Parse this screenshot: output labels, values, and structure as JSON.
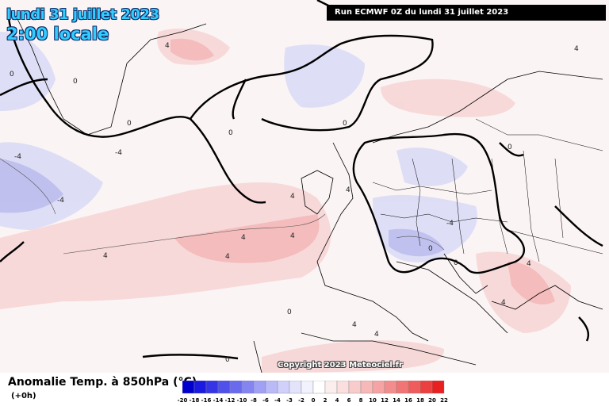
{
  "header": {
    "date": "lundi 31 juillet 2023",
    "local_time": "2:00 locale",
    "run_info": "Run ECMWF 0Z du lundi 31 juillet 2023"
  },
  "footer": {
    "copyright": "Copyright 2023 Meteociel.fr",
    "legend_title": "Anomalie Temp. à 850hPa (°C)",
    "legend_subtitle": "(+0h)"
  },
  "scale": {
    "labels": [
      "-20",
      "-18",
      "-16",
      "-14",
      "-12",
      "-10",
      "-8",
      "-6",
      "-4",
      "-3",
      "-2",
      "0",
      "2",
      "4",
      "6",
      "8",
      "10",
      "12",
      "14",
      "16",
      "18",
      "20",
      "22"
    ],
    "colors": [
      "#0000cc",
      "#1a1ae0",
      "#3535e6",
      "#5050ea",
      "#6a6aee",
      "#8585f2",
      "#a0a0f5",
      "#babaf8",
      "#d0d0fa",
      "#e3e3fc",
      "#f2f2fe",
      "#ffffff",
      "#fdeeee",
      "#fbdede",
      "#f9cccc",
      "#f7b8b8",
      "#f5a3a3",
      "#f38d8d",
      "#f17575",
      "#ef5c5c",
      "#ec3f3f",
      "#e82020"
    ]
  },
  "contour_labels": [
    "-4",
    "-4",
    "-4",
    "0",
    "0",
    "0",
    "0",
    "0",
    "0",
    "0",
    "0",
    "0",
    "4",
    "4",
    "4",
    "4",
    "4",
    "4",
    "4",
    "4",
    "4",
    "4",
    "4",
    "-4",
    "0",
    "4"
  ]
}
